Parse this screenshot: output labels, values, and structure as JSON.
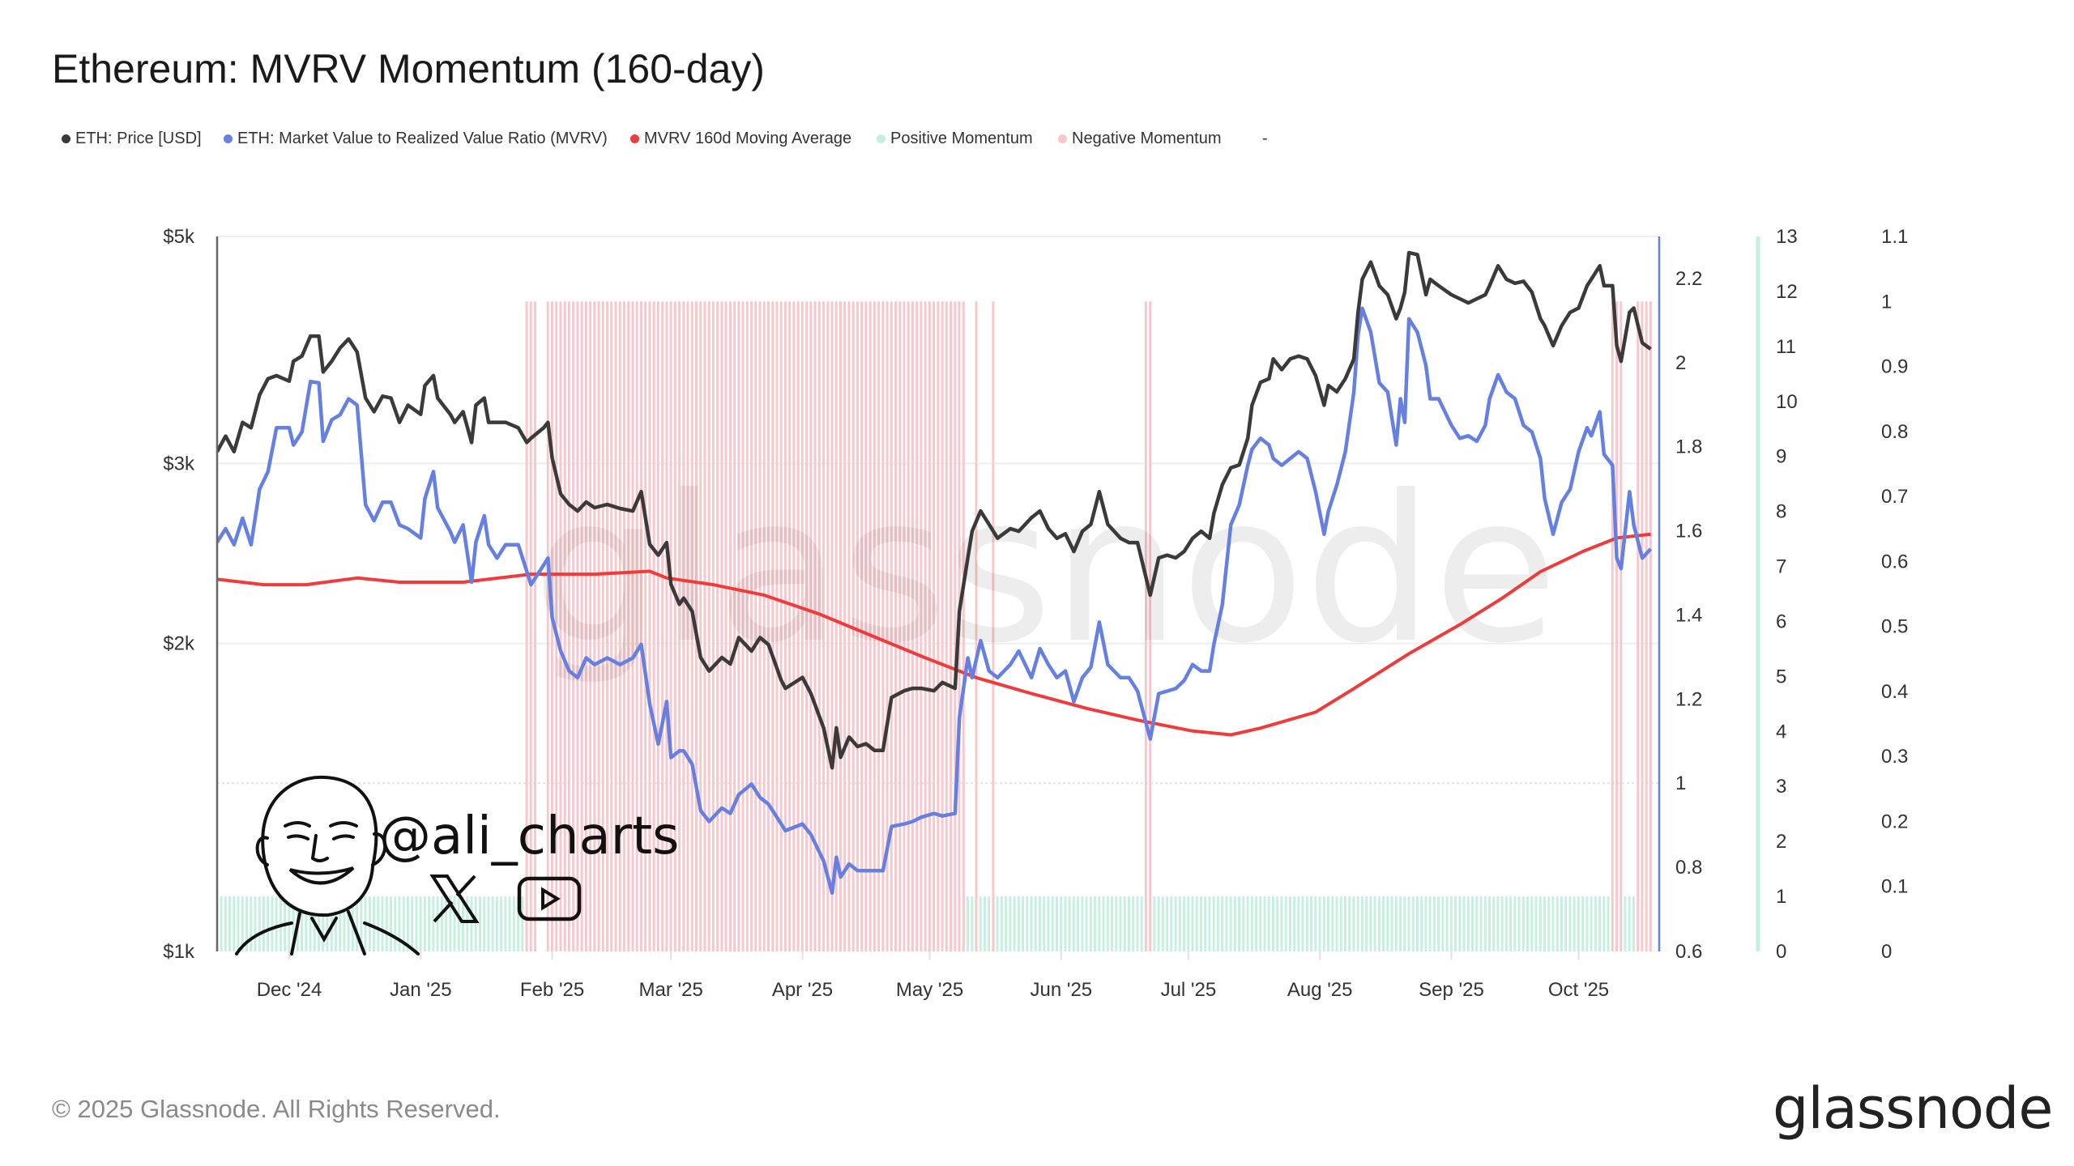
{
  "title": "Ethereum: MVRV Momentum (160-day)",
  "legend": [
    {
      "label": "ETH: Price [USD]",
      "color": "#3a3a3a"
    },
    {
      "label": "ETH: Market Value to Realized Value Ratio (MVRV)",
      "color": "#6680e2"
    },
    {
      "label": "MVRV 160d Moving Average",
      "color": "#ee3b3b"
    },
    {
      "label": "Positive Momentum",
      "color": "#c5efdf"
    },
    {
      "label": "Negative Momentum",
      "color": "#f9c6cb"
    },
    {
      "label": "-",
      "color": ""
    }
  ],
  "watermark": "glassnode",
  "overlay": {
    "handle": "@ali_charts",
    "icons": [
      "x-logo-icon",
      "youtube-icon"
    ]
  },
  "footer": "© 2025 Glassnode. All Rights Reserved.",
  "logo": "glassnode",
  "chart_data": {
    "type": "line",
    "title": "Ethereum: MVRV Momentum (160-day)",
    "x_range": [
      "2024-11-14",
      "2025-10-20"
    ],
    "x_ticks": [
      {
        "date": "2024-12-01",
        "label": "Dec '24"
      },
      {
        "date": "2025-01-01",
        "label": "Jan '25"
      },
      {
        "date": "2025-02-01",
        "label": "Feb '25"
      },
      {
        "date": "2025-03-01",
        "label": "Mar '25"
      },
      {
        "date": "2025-04-01",
        "label": "Apr '25"
      },
      {
        "date": "2025-05-01",
        "label": "May '25"
      },
      {
        "date": "2025-06-01",
        "label": "Jun '25"
      },
      {
        "date": "2025-07-01",
        "label": "Jul '25"
      },
      {
        "date": "2025-08-01",
        "label": "Aug '25"
      },
      {
        "date": "2025-09-01",
        "label": "Sep '25"
      },
      {
        "date": "2025-10-01",
        "label": "Oct '25"
      }
    ],
    "axes": {
      "price": {
        "scale": "log",
        "range": [
          1000,
          5000
        ],
        "ticks": [
          {
            "v": 5000,
            "label": "$5k"
          },
          {
            "v": 3000,
            "label": "$3k"
          },
          {
            "v": 2000,
            "label": "$2k"
          },
          {
            "v": 1000,
            "label": "$1k"
          }
        ],
        "color": "#555555"
      },
      "mvrv": {
        "scale": "linear",
        "range": [
          0.6,
          2.3
        ],
        "ticks": [
          "2.2",
          "2",
          "1.8",
          "1.6",
          "1.4",
          "1.2",
          "1",
          "0.8",
          "0.6"
        ],
        "color": "#6680e2"
      },
      "positive": {
        "scale": "linear",
        "range": [
          0,
          13
        ],
        "ticks": [
          "13",
          "12",
          "11",
          "10",
          "9",
          "8",
          "7",
          "6",
          "5",
          "4",
          "3",
          "2",
          "1",
          "0"
        ],
        "color": "#c5efdf"
      },
      "negative": {
        "scale": "linear",
        "range": [
          0,
          1.1
        ],
        "ticks": [
          "1.1",
          "1",
          "0.9",
          "0.8",
          "0.7",
          "0.6",
          "0.5",
          "0.4",
          "0.3",
          "0.2",
          "0.1",
          "0"
        ]
      }
    },
    "grid": true,
    "legend_position": "top-left",
    "series_rows_columns": [
      "date",
      "price_usd",
      "mvrv"
    ],
    "rows": [
      [
        "2024-11-14",
        3080,
        1.573
      ],
      [
        "2024-11-16",
        3190,
        1.605
      ],
      [
        "2024-11-18",
        3080,
        1.567
      ],
      [
        "2024-11-20",
        3290,
        1.63
      ],
      [
        "2024-11-22",
        3250,
        1.567
      ],
      [
        "2024-11-24",
        3500,
        1.699
      ],
      [
        "2024-11-26",
        3630,
        1.741
      ],
      [
        "2024-11-28",
        3655,
        1.845
      ],
      [
        "2024-12-01",
        3610,
        1.845
      ],
      [
        "2024-12-02",
        3775,
        1.804
      ],
      [
        "2024-12-04",
        3820,
        1.835
      ],
      [
        "2024-12-06",
        3995,
        1.955
      ],
      [
        "2024-12-08",
        3995,
        1.952
      ],
      [
        "2024-12-09",
        3685,
        1.813
      ],
      [
        "2024-12-11",
        3775,
        1.864
      ],
      [
        "2024-12-13",
        3890,
        1.876
      ],
      [
        "2024-12-15",
        3970,
        1.914
      ],
      [
        "2024-12-17",
        3855,
        1.899
      ],
      [
        "2024-12-19",
        3475,
        1.662
      ],
      [
        "2024-12-21",
        3370,
        1.624
      ],
      [
        "2024-12-23",
        3490,
        1.668
      ],
      [
        "2024-12-25",
        3475,
        1.668
      ],
      [
        "2024-12-27",
        3290,
        1.614
      ],
      [
        "2024-12-29",
        3420,
        1.605
      ],
      [
        "2025-01-01",
        3350,
        1.583
      ],
      [
        "2025-01-02",
        3575,
        1.677
      ],
      [
        "2025-01-04",
        3655,
        1.741
      ],
      [
        "2025-01-05",
        3475,
        1.655
      ],
      [
        "2025-01-08",
        3350,
        1.598
      ],
      [
        "2025-01-09",
        3290,
        1.573
      ],
      [
        "2025-01-11",
        3370,
        1.614
      ],
      [
        "2025-01-13",
        3145,
        1.478
      ],
      [
        "2025-01-14",
        3420,
        1.573
      ],
      [
        "2025-01-16",
        3475,
        1.636
      ],
      [
        "2025-01-17",
        3290,
        1.567
      ],
      [
        "2025-01-19",
        3290,
        1.535
      ],
      [
        "2025-01-21",
        3290,
        1.567
      ],
      [
        "2025-01-24",
        3250,
        1.567
      ],
      [
        "2025-01-26",
        3145,
        1.504
      ],
      [
        "2025-01-27",
        3175,
        1.472
      ],
      [
        "2025-01-30",
        3250,
        1.519
      ],
      [
        "2025-01-31",
        3290,
        1.535
      ],
      [
        "2025-02-01",
        3035,
        1.393
      ],
      [
        "2025-02-03",
        2800,
        1.314
      ],
      [
        "2025-02-05",
        2735,
        1.267
      ],
      [
        "2025-02-07",
        2695,
        1.251
      ],
      [
        "2025-02-09",
        2750,
        1.298
      ],
      [
        "2025-02-11",
        2715,
        1.282
      ],
      [
        "2025-02-14",
        2735,
        1.298
      ],
      [
        "2025-02-17",
        2710,
        1.282
      ],
      [
        "2025-02-20",
        2695,
        1.298
      ],
      [
        "2025-02-22",
        2815,
        1.33
      ],
      [
        "2025-02-24",
        2500,
        1.188
      ],
      [
        "2025-02-26",
        2440,
        1.093
      ],
      [
        "2025-02-28",
        2510,
        1.194
      ],
      [
        "2025-03-01",
        2285,
        1.061
      ],
      [
        "2025-03-03",
        2185,
        1.077
      ],
      [
        "2025-03-04",
        2215,
        1.077
      ],
      [
        "2025-03-06",
        2150,
        1.045
      ],
      [
        "2025-03-08",
        1938,
        0.935
      ],
      [
        "2025-03-10",
        1880,
        0.909
      ],
      [
        "2025-03-13",
        1938,
        0.941
      ],
      [
        "2025-03-15",
        1910,
        0.928
      ],
      [
        "2025-03-17",
        2027,
        0.973
      ],
      [
        "2025-03-20",
        1966,
        0.998
      ],
      [
        "2025-03-22",
        2027,
        0.966
      ],
      [
        "2025-03-24",
        1995,
        0.95
      ],
      [
        "2025-03-27",
        1841,
        0.903
      ],
      [
        "2025-03-28",
        1808,
        0.887
      ],
      [
        "2025-04-01",
        1853,
        0.903
      ],
      [
        "2025-04-03",
        1787,
        0.878
      ],
      [
        "2025-04-06",
        1654,
        0.815
      ],
      [
        "2025-04-08",
        1512,
        0.739
      ],
      [
        "2025-04-09",
        1654,
        0.824
      ],
      [
        "2025-04-10",
        1548,
        0.777
      ],
      [
        "2025-04-12",
        1620,
        0.808
      ],
      [
        "2025-04-14",
        1586,
        0.792
      ],
      [
        "2025-04-16",
        1596,
        0.792
      ],
      [
        "2025-04-18",
        1572,
        0.792
      ],
      [
        "2025-04-20",
        1572,
        0.792
      ],
      [
        "2025-04-22",
        1771,
        0.897
      ],
      [
        "2025-04-25",
        1798,
        0.903
      ],
      [
        "2025-04-27",
        1808,
        0.909
      ],
      [
        "2025-04-29",
        1808,
        0.919
      ],
      [
        "2025-05-02",
        1798,
        0.928
      ],
      [
        "2025-05-04",
        1832,
        0.922
      ],
      [
        "2025-05-07",
        1808,
        0.928
      ],
      [
        "2025-05-08",
        2150,
        1.156
      ],
      [
        "2025-05-10",
        2425,
        1.298
      ],
      [
        "2025-05-11",
        2575,
        1.251
      ],
      [
        "2025-05-13",
        2695,
        1.339
      ],
      [
        "2025-05-15",
        2615,
        1.267
      ],
      [
        "2025-05-17",
        2535,
        1.251
      ],
      [
        "2025-05-20",
        2590,
        1.282
      ],
      [
        "2025-05-22",
        2575,
        1.314
      ],
      [
        "2025-05-25",
        2655,
        1.251
      ],
      [
        "2025-05-27",
        2695,
        1.32
      ],
      [
        "2025-05-29",
        2590,
        1.282
      ],
      [
        "2025-05-31",
        2535,
        1.251
      ],
      [
        "2025-06-02",
        2560,
        1.267
      ],
      [
        "2025-06-04",
        2460,
        1.194
      ],
      [
        "2025-06-06",
        2575,
        1.251
      ],
      [
        "2025-06-08",
        2615,
        1.276
      ],
      [
        "2025-06-10",
        2815,
        1.383
      ],
      [
        "2025-06-12",
        2615,
        1.282
      ],
      [
        "2025-06-15",
        2535,
        1.251
      ],
      [
        "2025-06-17",
        2510,
        1.251
      ],
      [
        "2025-06-19",
        2510,
        1.219
      ],
      [
        "2025-06-22",
        2230,
        1.105
      ],
      [
        "2025-06-24",
        2425,
        1.213
      ],
      [
        "2025-06-26",
        2440,
        1.219
      ],
      [
        "2025-06-28",
        2425,
        1.225
      ],
      [
        "2025-06-30",
        2460,
        1.244
      ],
      [
        "2025-07-02",
        2535,
        1.282
      ],
      [
        "2025-07-04",
        2575,
        1.267
      ],
      [
        "2025-07-06",
        2535,
        1.267
      ],
      [
        "2025-07-07",
        2680,
        1.33
      ],
      [
        "2025-07-09",
        2860,
        1.425
      ],
      [
        "2025-07-11",
        2970,
        1.614
      ],
      [
        "2025-07-13",
        2990,
        1.662
      ],
      [
        "2025-07-15",
        3175,
        1.756
      ],
      [
        "2025-07-16",
        3420,
        1.794
      ],
      [
        "2025-07-18",
        3600,
        1.82
      ],
      [
        "2025-07-20",
        3630,
        1.804
      ],
      [
        "2025-07-21",
        3795,
        1.772
      ],
      [
        "2025-07-23",
        3705,
        1.756
      ],
      [
        "2025-07-25",
        3795,
        1.772
      ],
      [
        "2025-07-27",
        3820,
        1.788
      ],
      [
        "2025-07-29",
        3795,
        1.772
      ],
      [
        "2025-07-31",
        3655,
        1.693
      ],
      [
        "2025-08-02",
        3420,
        1.592
      ],
      [
        "2025-08-03",
        3575,
        1.646
      ],
      [
        "2025-08-05",
        3525,
        1.709
      ],
      [
        "2025-08-07",
        3630,
        1.788
      ],
      [
        "2025-08-09",
        3795,
        1.93
      ],
      [
        "2025-08-10",
        4215,
        2.066
      ],
      [
        "2025-08-11",
        4540,
        2.129
      ],
      [
        "2025-08-13",
        4720,
        2.072
      ],
      [
        "2025-08-15",
        4475,
        1.952
      ],
      [
        "2025-08-17",
        4385,
        1.93
      ],
      [
        "2025-08-19",
        4155,
        1.804
      ],
      [
        "2025-08-20",
        4255,
        1.914
      ],
      [
        "2025-08-21",
        4410,
        1.858
      ],
      [
        "2025-08-22",
        4820,
        2.104
      ],
      [
        "2025-08-24",
        4800,
        2.072
      ],
      [
        "2025-08-26",
        4385,
        1.993
      ],
      [
        "2025-08-27",
        4540,
        1.914
      ],
      [
        "2025-08-29",
        4475,
        1.914
      ],
      [
        "2025-09-01",
        4385,
        1.851
      ],
      [
        "2025-09-03",
        4345,
        1.82
      ],
      [
        "2025-09-05",
        4305,
        1.826
      ],
      [
        "2025-09-07",
        4345,
        1.813
      ],
      [
        "2025-09-09",
        4385,
        1.851
      ],
      [
        "2025-09-10",
        4475,
        1.914
      ],
      [
        "2025-09-12",
        4680,
        1.971
      ],
      [
        "2025-09-14",
        4540,
        1.93
      ],
      [
        "2025-09-16",
        4500,
        1.914
      ],
      [
        "2025-09-18",
        4520,
        1.851
      ],
      [
        "2025-09-20",
        4410,
        1.835
      ],
      [
        "2025-09-22",
        4155,
        1.772
      ],
      [
        "2025-09-23",
        4090,
        1.677
      ],
      [
        "2025-09-25",
        3910,
        1.592
      ],
      [
        "2025-09-27",
        4090,
        1.668
      ],
      [
        "2025-09-29",
        4215,
        1.699
      ],
      [
        "2025-10-01",
        4255,
        1.788
      ],
      [
        "2025-10-03",
        4475,
        1.845
      ],
      [
        "2025-10-04",
        4540,
        1.826
      ],
      [
        "2025-10-06",
        4680,
        1.883
      ],
      [
        "2025-10-07",
        4475,
        1.782
      ],
      [
        "2025-10-09",
        4475,
        1.756
      ],
      [
        "2025-10-10",
        3910,
        1.535
      ],
      [
        "2025-10-11",
        3775,
        1.51
      ],
      [
        "2025-10-13",
        4215,
        1.693
      ],
      [
        "2025-10-14",
        4255,
        1.614
      ],
      [
        "2025-10-16",
        3935,
        1.535
      ],
      [
        "2025-10-18",
        3880,
        1.557
      ]
    ],
    "mvrv_160d_ma": [
      [
        "2024-11-14",
        1.485
      ],
      [
        "2024-11-25",
        1.472
      ],
      [
        "2024-12-05",
        1.472
      ],
      [
        "2024-12-17",
        1.488
      ],
      [
        "2024-12-27",
        1.478
      ],
      [
        "2025-01-11",
        1.478
      ],
      [
        "2025-01-27",
        1.497
      ],
      [
        "2025-02-11",
        1.497
      ],
      [
        "2025-02-24",
        1.504
      ],
      [
        "2025-02-28",
        1.488
      ],
      [
        "2025-03-11",
        1.472
      ],
      [
        "2025-03-23",
        1.447
      ],
      [
        "2025-04-05",
        1.402
      ],
      [
        "2025-04-17",
        1.352
      ],
      [
        "2025-04-30",
        1.298
      ],
      [
        "2025-05-12",
        1.251
      ],
      [
        "2025-05-25",
        1.213
      ],
      [
        "2025-06-07",
        1.178
      ],
      [
        "2025-06-19",
        1.15
      ],
      [
        "2025-07-02",
        1.124
      ],
      [
        "2025-07-11",
        1.115
      ],
      [
        "2025-07-18",
        1.131
      ],
      [
        "2025-07-31",
        1.169
      ],
      [
        "2025-08-09",
        1.225
      ],
      [
        "2025-08-22",
        1.308
      ],
      [
        "2025-09-03",
        1.377
      ],
      [
        "2025-09-13",
        1.44
      ],
      [
        "2025-09-22",
        1.503
      ],
      [
        "2025-10-02",
        1.551
      ],
      [
        "2025-10-10",
        1.583
      ],
      [
        "2025-10-18",
        1.592
      ]
    ],
    "positive_momentum": {
      "value": 1,
      "axis": "positive",
      "ranges": [
        [
          "2024-11-14",
          "2025-01-25"
        ],
        [
          "2025-05-10",
          "2025-05-11"
        ],
        [
          "2025-05-13",
          "2025-05-15"
        ],
        [
          "2025-05-17",
          "2025-06-20"
        ],
        [
          "2025-06-23",
          "2025-10-08"
        ],
        [
          "2025-10-12",
          "2025-10-14"
        ]
      ]
    },
    "negative_momentum": {
      "value": 1,
      "axis": "negative",
      "ranges": [
        [
          "2025-01-26",
          "2025-01-28"
        ],
        [
          "2025-01-31",
          "2025-05-09"
        ],
        [
          "2025-05-12",
          "2025-05-12"
        ],
        [
          "2025-05-16",
          "2025-05-16"
        ],
        [
          "2025-06-21",
          "2025-06-22"
        ],
        [
          "2025-10-09",
          "2025-10-11"
        ],
        [
          "2025-10-15",
          "2025-10-18"
        ]
      ]
    }
  }
}
